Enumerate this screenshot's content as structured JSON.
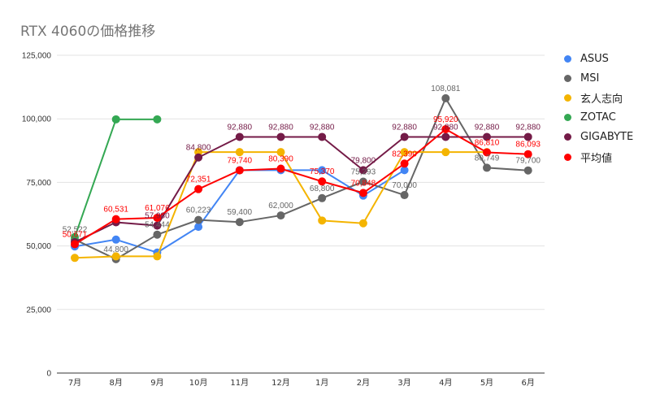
{
  "chart_data": {
    "type": "line",
    "title": "RTX 4060の価格推移",
    "xlabel": "",
    "ylabel": "",
    "categories": [
      "7月",
      "8月",
      "9月",
      "10月",
      "11月",
      "12月",
      "1月",
      "2月",
      "3月",
      "4月",
      "5月",
      "6月"
    ],
    "ylim": [
      0,
      125000
    ],
    "yticks": [
      0,
      25000,
      50000,
      75000,
      100000,
      125000
    ],
    "ytick_labels": [
      "0",
      "25,000",
      "50,000",
      "75,000",
      "100,000",
      "125,000"
    ],
    "grid": true,
    "legend_position": "right",
    "series": [
      {
        "name": "ASUS",
        "color": "#4285f4",
        "values": [
          49800,
          52500,
          47400,
          57500,
          79800,
          79800,
          79800,
          69800,
          79800,
          null,
          null,
          null
        ],
        "labels": [
          null,
          null,
          null,
          null,
          null,
          null,
          null,
          null,
          null,
          null,
          null,
          null
        ]
      },
      {
        "name": "MSI",
        "color": "#666666",
        "values": [
          52522,
          44800,
          54444,
          60223,
          59400,
          62000,
          68800,
          75293,
          70000,
          108081,
          80749,
          79700
        ],
        "labels": [
          "52,522",
          "44,800",
          "54,444",
          "60,223",
          "59,400",
          "62,000",
          "68,800",
          "75,293",
          "70,000",
          "108,081",
          "80,749",
          "79,700"
        ]
      },
      {
        "name": "玄人志向",
        "color": "#f4b400",
        "values": [
          45300,
          45900,
          45900,
          86900,
          86900,
          86900,
          60000,
          58900,
          86900,
          86900,
          86900,
          null
        ],
        "labels": [
          null,
          null,
          null,
          null,
          null,
          null,
          null,
          null,
          null,
          null,
          null,
          null
        ]
      },
      {
        "name": "ZOTAC",
        "color": "#34a853",
        "values": [
          53500,
          99800,
          99800,
          null,
          null,
          null,
          null,
          null,
          null,
          null,
          null,
          null
        ],
        "labels": [
          null,
          null,
          null,
          null,
          null,
          null,
          null,
          null,
          null,
          null,
          null,
          null
        ]
      },
      {
        "name": "GIGABYTE",
        "color": "#741b47",
        "values": [
          51500,
          59300,
          57980,
          84800,
          92880,
          92880,
          92880,
          79800,
          92880,
          92880,
          92880,
          92880
        ],
        "labels": [
          null,
          null,
          "57,980",
          "84,800",
          "92,880",
          "92,880",
          "92,880",
          "79,800",
          "92,880",
          "92,880",
          "92,880",
          "92,880"
        ]
      },
      {
        "name": "平均値",
        "color": "#ff0000",
        "values": [
          50671,
          60531,
          61076,
          72351,
          79740,
          80390,
          75370,
          70848,
          82390,
          95920,
          86810,
          86093
        ],
        "labels": [
          "50,671",
          "60,531",
          "61,076",
          "72,351",
          "79,740",
          "80,390",
          "75,370",
          "70,848",
          "82,390",
          "95,920",
          "86,810",
          "86,093"
        ]
      }
    ]
  }
}
